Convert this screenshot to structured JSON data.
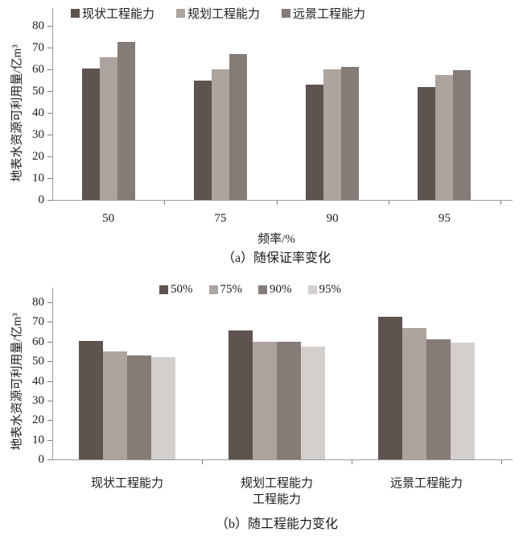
{
  "chart_data": [
    {
      "id": "a",
      "type": "bar",
      "caption": "（a）随保证率变化",
      "xlabel": "频率/%",
      "ylabel": "地表水资源可利用量/亿m³",
      "categories": [
        "50",
        "75",
        "90",
        "95"
      ],
      "series": [
        {
          "name": "现状工程能力",
          "color": "#5e534e",
          "values": [
            60.5,
            55,
            53,
            52
          ]
        },
        {
          "name": "规划工程能力",
          "color": "#ada49f",
          "values": [
            65.5,
            60,
            60,
            57.5
          ]
        },
        {
          "name": "远景工程能力",
          "color": "#867c77",
          "values": [
            72.5,
            67,
            61,
            59.5
          ]
        }
      ],
      "ylim": [
        0,
        80
      ],
      "ytick_step": 10,
      "legend_position": "top",
      "grid": false
    },
    {
      "id": "b",
      "type": "bar",
      "caption": "（b）随工程能力变化",
      "xlabel": "工程能力",
      "ylabel": "地表水资源可利用量/亿m³",
      "categories": [
        "现状工程能力",
        "规划工程能力",
        "远景工程能力"
      ],
      "series": [
        {
          "name": "50%",
          "color": "#5e534e",
          "values": [
            60.5,
            65.5,
            72.5
          ]
        },
        {
          "name": "75%",
          "color": "#ada49f",
          "values": [
            55,
            60,
            67
          ]
        },
        {
          "name": "90%",
          "color": "#867c77",
          "values": [
            53,
            60,
            61
          ]
        },
        {
          "name": "95%",
          "color": "#d5cfcc",
          "values": [
            52,
            57.5,
            59.5
          ]
        }
      ],
      "ylim": [
        0,
        80
      ],
      "ytick_step": 10,
      "legend_position": "top",
      "grid": false
    }
  ]
}
